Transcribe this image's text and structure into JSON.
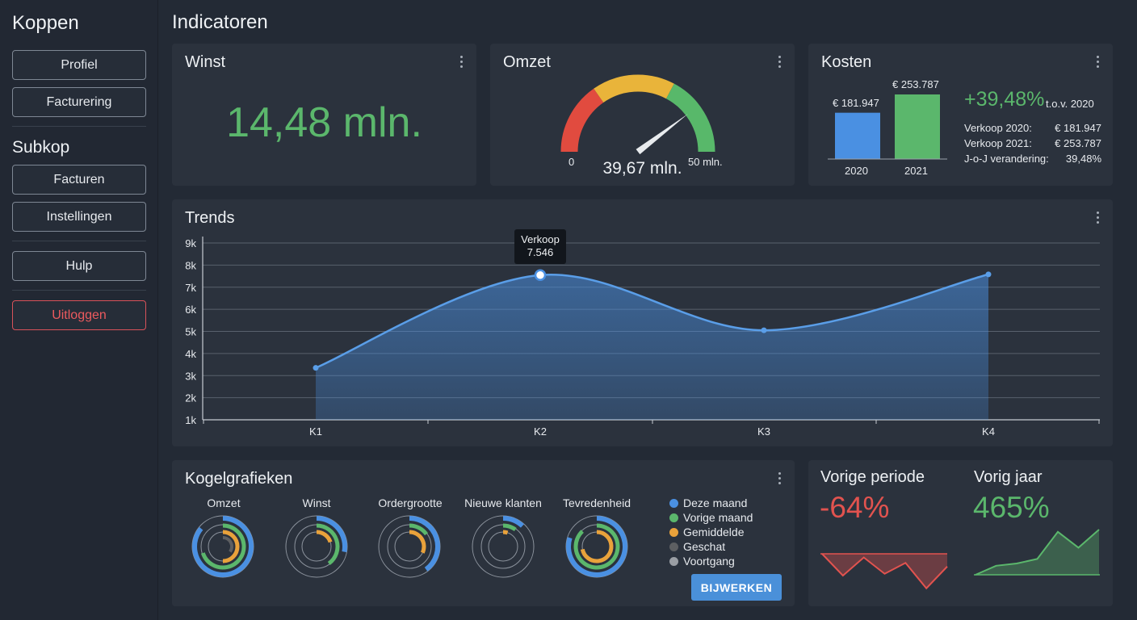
{
  "sidebar": {
    "title": "Koppen",
    "subtitle": "Subkop",
    "buttons": {
      "profiel": "Profiel",
      "facturering": "Facturering",
      "facturen": "Facturen",
      "instellingen": "Instellingen",
      "hulp": "Hulp",
      "uitloggen": "Uitloggen"
    }
  },
  "page": {
    "title": "Indicatoren"
  },
  "winst": {
    "title": "Winst",
    "value": "14,48 mln."
  },
  "omzet": {
    "title": "Omzet",
    "value_label": "39,67 mln.",
    "min_label": "0",
    "max_label": "50 mln.",
    "gauge_value": 39.67,
    "gauge_max": 50,
    "colors": {
      "low": "#e14b3f",
      "mid": "#e9b43a",
      "high": "#58b86a"
    }
  },
  "kosten": {
    "title": "Kosten",
    "change": "+39,48%",
    "compare": "t.o.v. 2020",
    "rows": [
      {
        "label": "Verkoop 2020:",
        "value": "€ 181.947"
      },
      {
        "label": "Verkoop 2021:",
        "value": "€ 253.787"
      },
      {
        "label": "J-o-J verandering:",
        "value": "39,48%"
      }
    ],
    "bars": [
      {
        "year": "2020",
        "value_label": "€ 181.947",
        "value": 181947,
        "color": "#4a90e2"
      },
      {
        "year": "2021",
        "value_label": "€ 253.787",
        "value": 253787,
        "color": "#5bb76c"
      }
    ]
  },
  "trends": {
    "title": "Trends",
    "tooltip": {
      "series": "Verkoop",
      "value": "7.546"
    },
    "chart_data": {
      "type": "area",
      "categories": [
        "K1",
        "K2",
        "K3",
        "K4"
      ],
      "series": [
        {
          "name": "Verkoop",
          "values": [
            3350,
            7546,
            5050,
            7580
          ]
        }
      ],
      "yticks": [
        "1k",
        "2k",
        "3k",
        "4k",
        "5k",
        "6k",
        "7k",
        "8k",
        "9k"
      ],
      "ylim": [
        1000,
        9000
      ],
      "grid": true,
      "color": "#4a90e2"
    }
  },
  "kogelgrafieken": {
    "title": "Kogelgrafieken",
    "charts": [
      {
        "label": "Omzet",
        "deze_maand": 0.86,
        "vorige_maand": 0.7,
        "gemiddelde": 0.5,
        "geschat": 0.35
      },
      {
        "label": "Winst",
        "deze_maand": 0.28,
        "vorige_maand": 0.4,
        "gemiddelde": 0.2,
        "geschat": 0
      },
      {
        "label": "Ordergrootte",
        "deze_maand": 0.4,
        "vorige_maand": 0.15,
        "gemiddelde": 0.32,
        "geschat": 0
      },
      {
        "label": "Nieuwe klanten",
        "deze_maand": 0.12,
        "vorige_maand": 0.1,
        "gemiddelde": 0.05,
        "geschat": 0
      },
      {
        "label": "Tevredenheid",
        "deze_maand": 0.8,
        "vorige_maand": 0.88,
        "gemiddelde": 0.72,
        "geschat": 0
      }
    ],
    "legend": [
      {
        "label": "Deze maand",
        "color": "#4a90e2"
      },
      {
        "label": "Vorige maand",
        "color": "#5bb76c"
      },
      {
        "label": "Gemiddelde",
        "color": "#e9a23b"
      },
      {
        "label": "Geschat",
        "color": "#5d5f62"
      },
      {
        "label": "Voortgang",
        "color": "#9a9ea4"
      }
    ],
    "button": "BIJWERKEN"
  },
  "periodes": {
    "vorige_periode": {
      "title": "Vorige periode",
      "value": "-64%",
      "color": "#e2534f",
      "spark": [
        0.0,
        0.6,
        0.1,
        0.55,
        0.25,
        0.95,
        0.35
      ]
    },
    "vorig_jaar": {
      "title": "Vorig jaar",
      "value": "465%",
      "color": "#5bb76c",
      "spark": [
        0.0,
        0.2,
        0.25,
        0.35,
        0.95,
        0.6,
        1.0
      ]
    }
  }
}
